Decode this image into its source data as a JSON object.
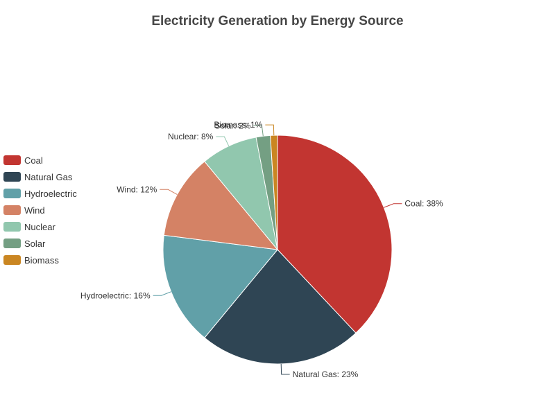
{
  "chart_data": {
    "type": "pie",
    "title": "Electricity Generation by Energy Source",
    "legend_position": "left",
    "slices": [
      {
        "name": "Coal",
        "value": 38,
        "label": "Coal: 38%",
        "color": "#c23531"
      },
      {
        "name": "Natural Gas",
        "value": 23,
        "label": "Natural Gas: 23%",
        "color": "#2f4554"
      },
      {
        "name": "Hydroelectric",
        "value": 16,
        "label": "Hydroelectric: 16%",
        "color": "#61a0a8"
      },
      {
        "name": "Wind",
        "value": 12,
        "label": "Wind: 12%",
        "color": "#d48265"
      },
      {
        "name": "Nuclear",
        "value": 8,
        "label": "Nuclear: 8%",
        "color": "#91c7ae"
      },
      {
        "name": "Solar",
        "value": 2,
        "label": "Solar: 2%",
        "color": "#749f83"
      },
      {
        "name": "Biomass",
        "value": 1,
        "label": "Biomass: 1%",
        "color": "#ca8622"
      }
    ]
  }
}
